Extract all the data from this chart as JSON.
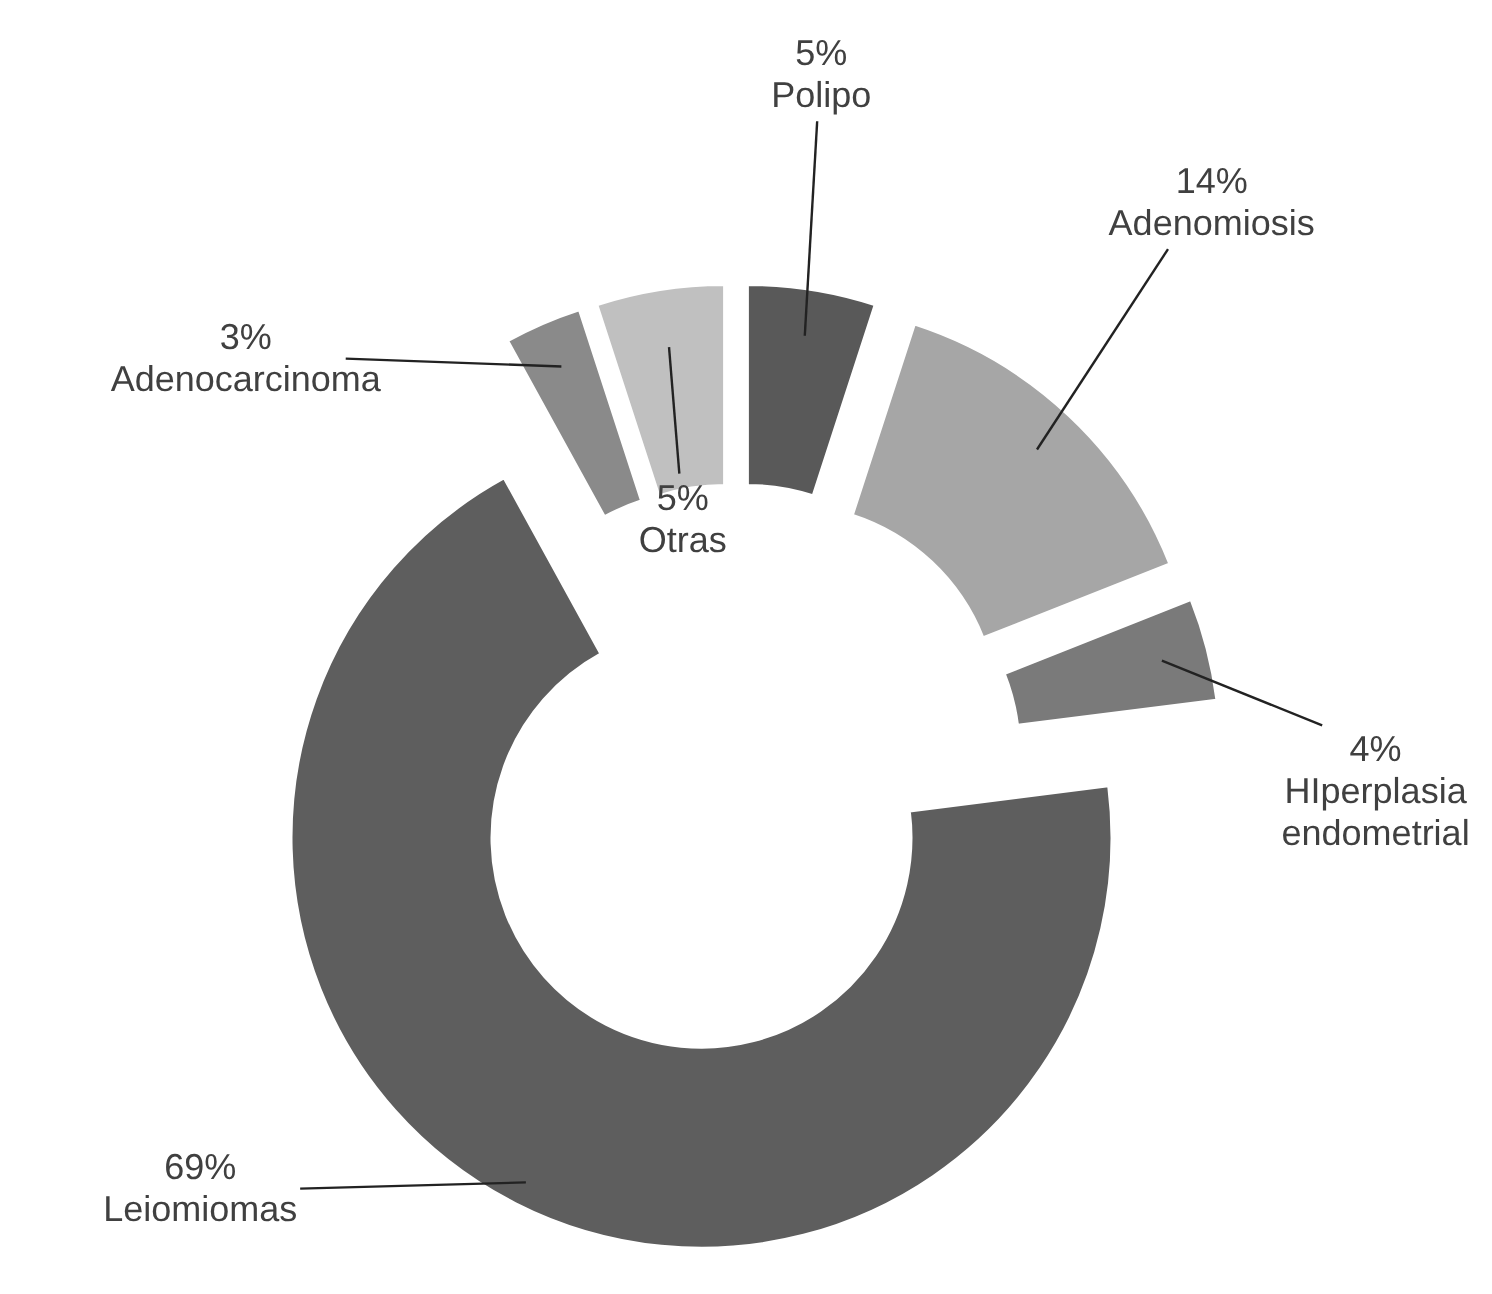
{
  "chart_data": {
    "type": "donut",
    "categories": [
      "Polipo",
      "Adenomiosis",
      "HIperplasia endometrial",
      "Leiomiomas",
      "Adenocarcinoma",
      "Otras"
    ],
    "values": [
      5,
      14,
      4,
      69,
      3,
      5
    ],
    "value_labels": [
      "5%",
      "14%",
      "4%",
      "69%",
      "3%",
      "5%"
    ],
    "colors": [
      "#595959",
      "#a6a6a6",
      "#7a7a7a",
      "#5e5e5e",
      "#8a8a8a",
      "#c0c0c0"
    ]
  }
}
